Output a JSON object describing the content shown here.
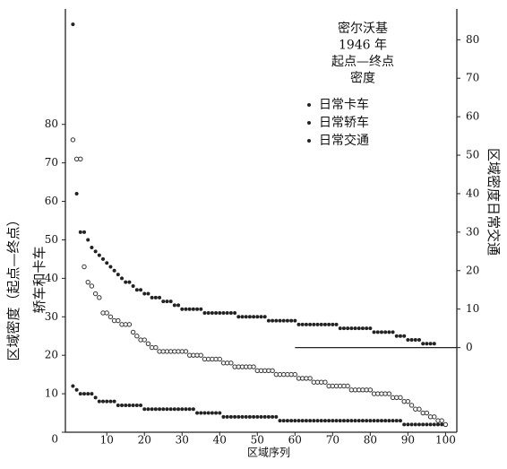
{
  "chart_data": {
    "type": "scatter",
    "title_lines": [
      "密尔沃基",
      "1946 年",
      "起点—终点",
      "密度"
    ],
    "xlabel": "区域序列",
    "ylabel": [
      "区域密度（起点—终点）",
      "轿车和卡车"
    ],
    "y2label": "区域密度日常交通",
    "x": [
      1,
      2,
      3,
      4,
      5,
      6,
      7,
      8,
      9,
      10,
      11,
      12,
      13,
      14,
      15,
      16,
      17,
      18,
      19,
      20,
      21,
      22,
      23,
      24,
      25,
      26,
      27,
      28,
      29,
      30,
      31,
      32,
      33,
      34,
      35,
      36,
      37,
      38,
      39,
      40,
      41,
      42,
      43,
      44,
      45,
      46,
      47,
      48,
      49,
      50,
      51,
      52,
      53,
      54,
      55,
      56,
      57,
      58,
      59,
      60,
      61,
      62,
      63,
      64,
      65,
      66,
      67,
      68,
      69,
      70,
      71,
      72,
      73,
      74,
      75,
      76,
      77,
      78,
      79,
      80,
      81,
      82,
      83,
      84,
      85,
      86,
      87,
      88,
      89,
      90,
      91,
      92,
      93,
      94,
      95,
      96,
      97,
      98,
      99,
      100
    ],
    "series": [
      {
        "name": "日常卡车",
        "color": "#222",
        "marker": "dot",
        "values": [
          12,
          11,
          10,
          10,
          10,
          10,
          9,
          8,
          8,
          8,
          8,
          8,
          7,
          7,
          7,
          7,
          7,
          7,
          7,
          6,
          6,
          6,
          6,
          6,
          6,
          6,
          6,
          6,
          6,
          6,
          6,
          6,
          6,
          5,
          5,
          5,
          5,
          5,
          5,
          5,
          4,
          4,
          4,
          4,
          4,
          4,
          4,
          4,
          4,
          4,
          4,
          4,
          4,
          4,
          4,
          3,
          3,
          3,
          3,
          3,
          3,
          3,
          3,
          3,
          3,
          3,
          3,
          3,
          3,
          3,
          3,
          3,
          3,
          3,
          3,
          3,
          3,
          3,
          3,
          3,
          3,
          3,
          3,
          3,
          3,
          3,
          3,
          3,
          2,
          2,
          2,
          2,
          2,
          2,
          2,
          2,
          2,
          2,
          2,
          2
        ]
      },
      {
        "name": "日常轿车",
        "color": "#333",
        "marker": "circle",
        "values": [
          76,
          71,
          71,
          43,
          39,
          38,
          36,
          35,
          31,
          31,
          30,
          29,
          29,
          28,
          28,
          28,
          26,
          25,
          24,
          24,
          23,
          22,
          22,
          21,
          21,
          21,
          21,
          21,
          21,
          21,
          21,
          20,
          20,
          20,
          20,
          19,
          19,
          19,
          19,
          19,
          18,
          18,
          18,
          17,
          17,
          17,
          17,
          17,
          17,
          16,
          16,
          16,
          16,
          16,
          15,
          15,
          15,
          15,
          15,
          15,
          14,
          14,
          14,
          14,
          13,
          13,
          13,
          13,
          12,
          12,
          12,
          12,
          12,
          12,
          11,
          11,
          11,
          11,
          11,
          11,
          10,
          10,
          10,
          10,
          10,
          9,
          9,
          9,
          8,
          8,
          7,
          6,
          6,
          5,
          5,
          4,
          4,
          3,
          3,
          2
        ]
      },
      {
        "name": "日常交通",
        "color": "#222",
        "marker": "dot",
        "axis": "y2",
        "values": [
          84,
          40,
          30,
          30,
          28,
          26,
          25,
          24,
          23,
          22,
          21,
          20,
          19,
          18,
          17,
          17,
          16,
          15,
          15,
          14,
          14,
          13,
          13,
          13,
          12,
          12,
          12,
          11,
          11,
          10,
          10,
          10,
          10,
          10,
          10,
          9,
          9,
          9,
          9,
          9,
          9,
          9,
          9,
          9,
          8,
          8,
          8,
          8,
          8,
          8,
          8,
          8,
          7,
          7,
          7,
          7,
          7,
          7,
          7,
          7,
          6,
          6,
          6,
          6,
          6,
          6,
          6,
          6,
          6,
          6,
          6,
          5,
          5,
          5,
          5,
          5,
          5,
          5,
          5,
          5,
          4,
          4,
          4,
          4,
          4,
          4,
          3,
          3,
          3,
          2,
          2,
          2,
          2,
          1,
          1,
          1,
          1,
          null,
          null,
          null
        ]
      }
    ],
    "xlim": [
      -1,
      103
    ],
    "xticks": [
      10,
      20,
      30,
      40,
      50,
      60,
      70,
      80,
      90,
      100
    ],
    "ylim": [
      0,
      110
    ],
    "yticks": [
      0,
      10,
      20,
      30,
      40,
      50,
      60,
      70,
      80
    ],
    "y2lim": [
      -22,
      88
    ],
    "y2ticks": [
      0,
      10,
      20,
      30,
      40,
      50,
      60,
      70,
      80
    ],
    "grid": false
  }
}
